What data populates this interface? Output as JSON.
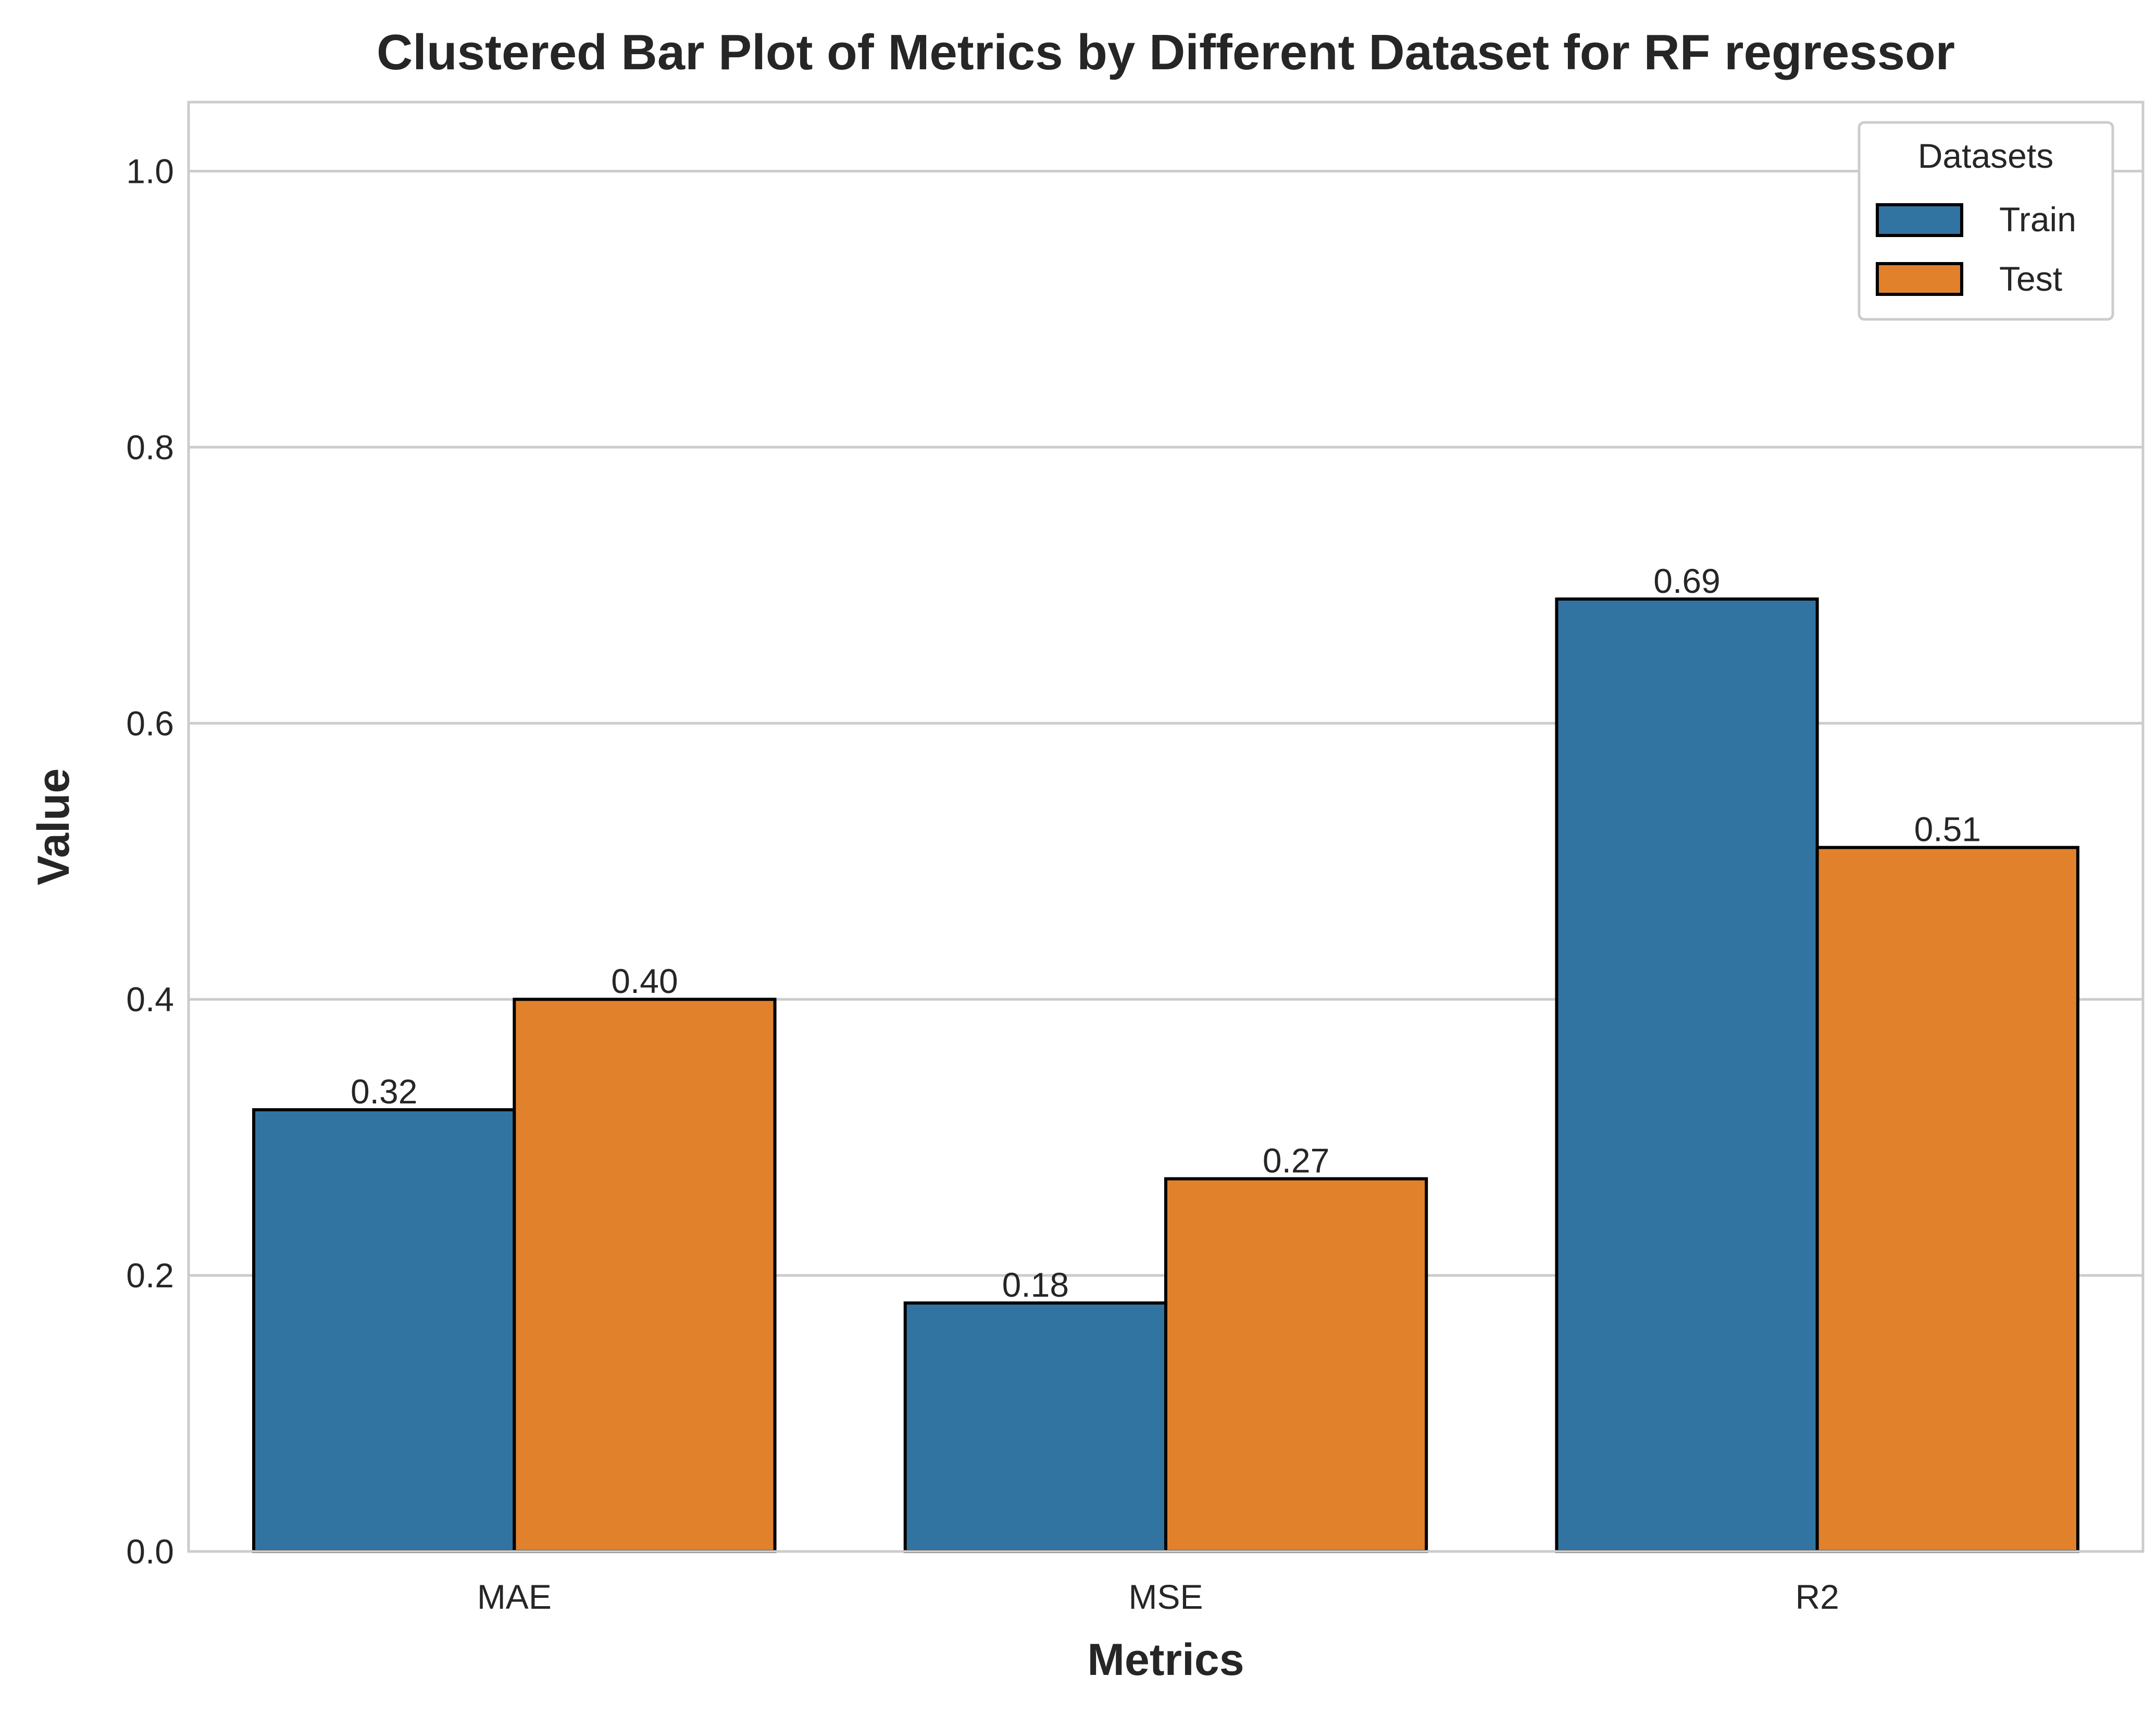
{
  "chart_data": {
    "type": "bar",
    "title": "Clustered Bar Plot of Metrics by Different Dataset for RF regressor",
    "xlabel": "Metrics",
    "ylabel": "Value",
    "categories": [
      "MAE",
      "MSE",
      "R2"
    ],
    "series": [
      {
        "name": "Train",
        "values": [
          0.32,
          0.18,
          0.69
        ],
        "labels": [
          "0.32",
          "0.18",
          "0.69"
        ],
        "color": "#3274a1"
      },
      {
        "name": "Test",
        "values": [
          0.4,
          0.27,
          0.51
        ],
        "labels": [
          "0.40",
          "0.27",
          "0.51"
        ],
        "color": "#e1812c"
      }
    ],
    "ylim": [
      0,
      1.05
    ],
    "yticks": [
      0.0,
      0.2,
      0.4,
      0.6,
      0.8,
      1.0
    ],
    "ytick_labels": [
      "0.0",
      "0.2",
      "0.4",
      "0.6",
      "0.8",
      "1.0"
    ],
    "legend_title": "Datasets",
    "legend_position": "top-right",
    "grid": "horizontal"
  }
}
